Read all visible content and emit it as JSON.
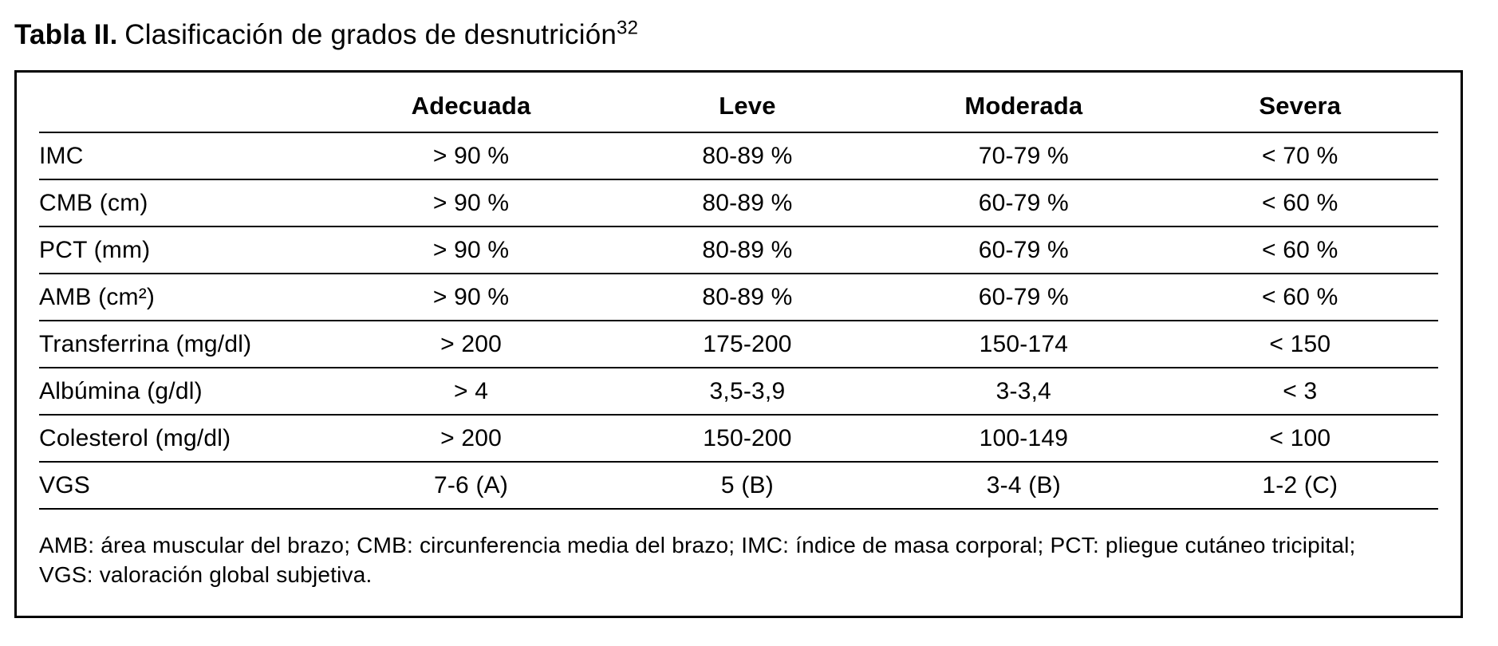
{
  "title": {
    "label": "Tabla II.",
    "caption": "Clasificación de grados de desnutrición",
    "reference": "32"
  },
  "table": {
    "columns": [
      "",
      "Adecuada",
      "Leve",
      "Moderada",
      "Severa"
    ],
    "rows": [
      {
        "label": "IMC",
        "cells": [
          "> 90 %",
          "80-89 %",
          "70-79 %",
          "< 70 %"
        ]
      },
      {
        "label": "CMB (cm)",
        "cells": [
          "> 90 %",
          "80-89 %",
          "60-79 %",
          "< 60 %"
        ]
      },
      {
        "label": "PCT (mm)",
        "cells": [
          "> 90 %",
          "80-89 %",
          "60-79 %",
          "< 60 %"
        ]
      },
      {
        "label": "AMB (cm²)",
        "cells": [
          "> 90 %",
          "80-89 %",
          "60-79 %",
          "< 60 %"
        ]
      },
      {
        "label": "Transferrina (mg/dl)",
        "cells": [
          "> 200",
          "175-200",
          "150-174",
          "< 150"
        ]
      },
      {
        "label": "Albúmina (g/dl)",
        "cells": [
          "> 4",
          "3,5-3,9",
          "3-3,4",
          "< 3"
        ]
      },
      {
        "label": "Colesterol (mg/dl)",
        "cells": [
          "> 200",
          "150-200",
          "100-149",
          "< 100"
        ]
      },
      {
        "label": "VGS",
        "cells": [
          "7-6 (A)",
          "5 (B)",
          "3-4 (B)",
          "1-2 (C)"
        ]
      }
    ],
    "footnote": {
      "line1": "AMB: área muscular del brazo; CMB: circunferencia media del brazo; IMC: índice de masa corporal; PCT: pliegue cutáneo tricipital;",
      "line2": "VGS: valoración global subjetiva."
    }
  },
  "colors": {
    "text": "#000000",
    "background": "#ffffff",
    "border": "#000000"
  }
}
